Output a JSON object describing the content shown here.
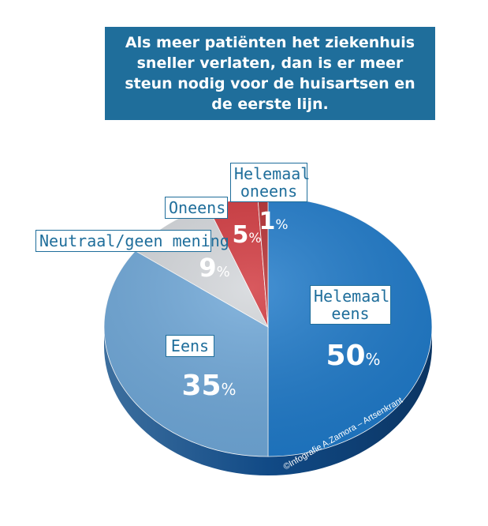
{
  "title": "Als meer patiënten het ziekenhuis sneller verlaten, dan is er meer steun nodig voor de huisartsen en de eerste lijn.",
  "credit": "©Infografie A.Zamora – Artsenkrant",
  "chart_data": {
    "type": "pie",
    "title": "Als meer patiënten het ziekenhuis sneller verlaten, dan is er meer steun nodig voor de huisartsen en de eerste lijn.",
    "slices": [
      {
        "label": "Helemaal eens",
        "value": 50,
        "display": "50",
        "color": "#1d79c9"
      },
      {
        "label": "Eens",
        "value": 35,
        "display": "35",
        "color": "#6ea7d8"
      },
      {
        "label": "Neutraal/geen mening",
        "value": 9,
        "display": "9",
        "color": "#d3d6da"
      },
      {
        "label": "Oneens",
        "value": 5,
        "display": "5",
        "color": "#d0353b"
      },
      {
        "label": "Helemaal oneens",
        "value": 1,
        "display": "1",
        "color": "#b42a2e"
      }
    ],
    "unit": "%"
  },
  "colors": {
    "title_bg": "#1f6e9b",
    "label_text": "#1f6e9b"
  }
}
